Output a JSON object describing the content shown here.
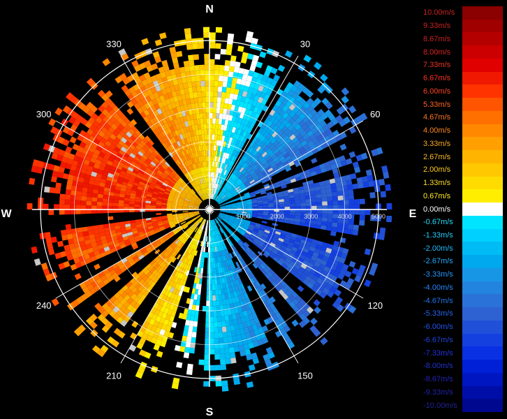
{
  "chart_data": {
    "type": "heatmap",
    "title": "",
    "compass": {
      "north": "N",
      "south": "S",
      "east": "E",
      "west": "W"
    },
    "azimuth_labels": [
      {
        "deg": 30,
        "text": "30"
      },
      {
        "deg": 60,
        "text": "60"
      },
      {
        "deg": 120,
        "text": "120"
      },
      {
        "deg": 150,
        "text": "150"
      },
      {
        "deg": 210,
        "text": "210"
      },
      {
        "deg": 240,
        "text": "240"
      },
      {
        "deg": 300,
        "text": "300"
      },
      {
        "deg": 330,
        "text": "330"
      }
    ],
    "range_rings": [
      1000,
      2000,
      3000,
      4000,
      5000
    ],
    "range_labels": [
      "1000",
      "2000",
      "3000",
      "4000",
      "5000"
    ],
    "range_max": 5000,
    "units": "m/s",
    "colorbar": {
      "labels": [
        "10.00m/s",
        "9.33m/s",
        "8.67m/s",
        "8.00m/s",
        "7.33m/s",
        "6.67m/s",
        "6.00m/s",
        "5.33m/s",
        "4.67m/s",
        "4.00m/s",
        "3.33m/s",
        "2.67m/s",
        "2.00m/s",
        "1.33m/s",
        "0.67m/s",
        "0.00m/s",
        "-0.67m/s",
        "-1.33m/s",
        "-2.00m/s",
        "-2.67m/s",
        "-3.33m/s",
        "-4.00m/s",
        "-4.67m/s",
        "-5.33m/s",
        "-6.00m/s",
        "-6.67m/s",
        "-7.33m/s",
        "-8.00m/s",
        "-8.67m/s",
        "-9.33m/s",
        "-10.00m/s"
      ],
      "values": [
        10.0,
        9.33,
        8.67,
        8.0,
        7.33,
        6.67,
        6.0,
        5.33,
        4.67,
        4.0,
        3.33,
        2.67,
        2.0,
        1.33,
        0.67,
        0.0,
        -0.67,
        -1.33,
        -2.0,
        -2.67,
        -3.33,
        -4.0,
        -4.67,
        -5.33,
        -6.0,
        -6.67,
        -7.33,
        -8.0,
        -8.67,
        -9.33,
        -10.0
      ],
      "colors": [
        "#8b0000",
        "#a00000",
        "#b50000",
        "#cc0000",
        "#e00000",
        "#f01800",
        "#ff3300",
        "#ff5500",
        "#ff7000",
        "#ff8800",
        "#ffa000",
        "#ffb400",
        "#ffc800",
        "#ffdc00",
        "#ffee00",
        "#ffffff",
        "#00e4ff",
        "#00d0ff",
        "#00bcf4",
        "#00a8ee",
        "#1896e6",
        "#2284de",
        "#2a72d8",
        "#2e62d2",
        "#2050d8",
        "#1540e0",
        "#0a30e4",
        "#0020d8",
        "#0016c0",
        "#000ea8",
        "#000890"
      ],
      "label_colors": [
        "#cc2222",
        "#cc2222",
        "#cc2222",
        "#dd2222",
        "#ee3322",
        "#ff3322",
        "#ff4422",
        "#ff6622",
        "#ff7722",
        "#ff8822",
        "#ffaa22",
        "#ffbb22",
        "#ffcc22",
        "#ffdd22",
        "#ffee22",
        "#ffffff",
        "#22ddff",
        "#22ccff",
        "#22bbff",
        "#22aaff",
        "#2299ff",
        "#2288ff",
        "#2277ee",
        "#2266ee",
        "#2255ee",
        "#2244dd",
        "#2233dd",
        "#2233cc",
        "#2222bb",
        "#2222aa",
        "#222299"
      ]
    },
    "velocity_field": {
      "description_axis": "azimuth_deg_vs_range_m",
      "sector_speeds": [
        {
          "az_start": 0,
          "az_end": 90,
          "mean_velocity": -3.5
        },
        {
          "az_start": 90,
          "az_end": 180,
          "mean_velocity": -3.0
        },
        {
          "az_start": 180,
          "az_end": 270,
          "mean_velocity": 2.5
        },
        {
          "az_start": 270,
          "az_end": 360,
          "mean_velocity": 5.0
        }
      ],
      "data_gaps_az": [
        [
          28,
          31
        ],
        [
          62,
          66
        ],
        [
          72,
          74
        ],
        [
          100,
          104
        ],
        [
          128,
          132
        ],
        [
          140,
          144
        ],
        [
          150,
          154
        ],
        [
          182,
          184
        ],
        [
          192,
          196
        ],
        [
          210,
          214
        ],
        [
          228,
          232
        ],
        [
          240,
          244
        ],
        [
          262,
          266
        ],
        [
          318,
          322
        ]
      ]
    }
  }
}
